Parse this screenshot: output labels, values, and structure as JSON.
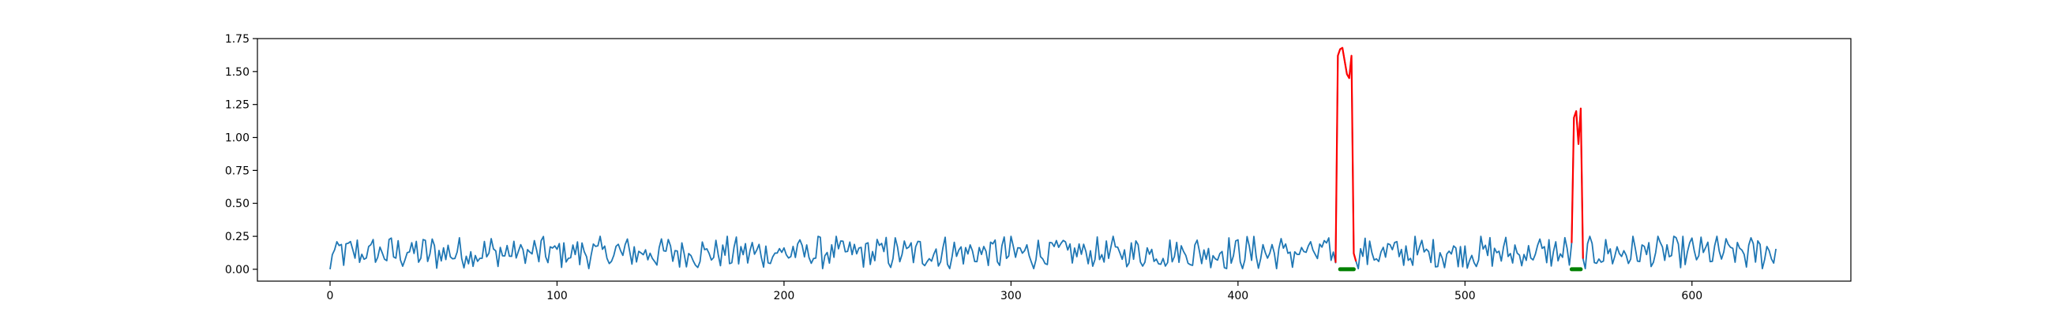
{
  "chart_data": {
    "type": "line",
    "title": "",
    "xlabel": "",
    "ylabel": "",
    "xlim": [
      -32,
      670
    ],
    "ylim": [
      -0.09,
      1.75
    ],
    "x_ticks": [
      0,
      100,
      200,
      300,
      400,
      500,
      600
    ],
    "x_tick_labels": [
      "0",
      "100",
      "200",
      "300",
      "400",
      "500",
      "600"
    ],
    "y_ticks": [
      0.0,
      0.25,
      0.5,
      0.75,
      1.0,
      1.25,
      1.5,
      1.75
    ],
    "y_tick_labels": [
      "0.00",
      "0.25",
      "0.50",
      "0.75",
      "1.00",
      "1.25",
      "1.50",
      "1.75"
    ],
    "grid": false,
    "legend": "none",
    "n_points": 638,
    "baseline": {
      "mean": 0.125,
      "min": 0.0,
      "max": 0.25,
      "first_value": 0.0
    },
    "anomaly_windows": [
      {
        "start": 444,
        "end": 451,
        "peak": 1.68,
        "shape": [
          0.05,
          1.62,
          1.67,
          1.68,
          1.58,
          1.48,
          1.45,
          1.62,
          0.12,
          0.06
        ]
      },
      {
        "start": 548,
        "end": 552,
        "peak": 1.22,
        "shape": [
          0.2,
          1.15,
          1.2,
          0.95,
          1.22,
          0.08
        ]
      }
    ],
    "anomaly_markers": [
      {
        "x_start": 445,
        "x_end": 451,
        "y": 0.0
      },
      {
        "x_start": 547,
        "x_end": 551,
        "y": 0.0
      }
    ],
    "colors": {
      "series": "#1f77b4",
      "anomaly": "#ff0000",
      "marker": "#008000",
      "axes": "#000000"
    }
  }
}
